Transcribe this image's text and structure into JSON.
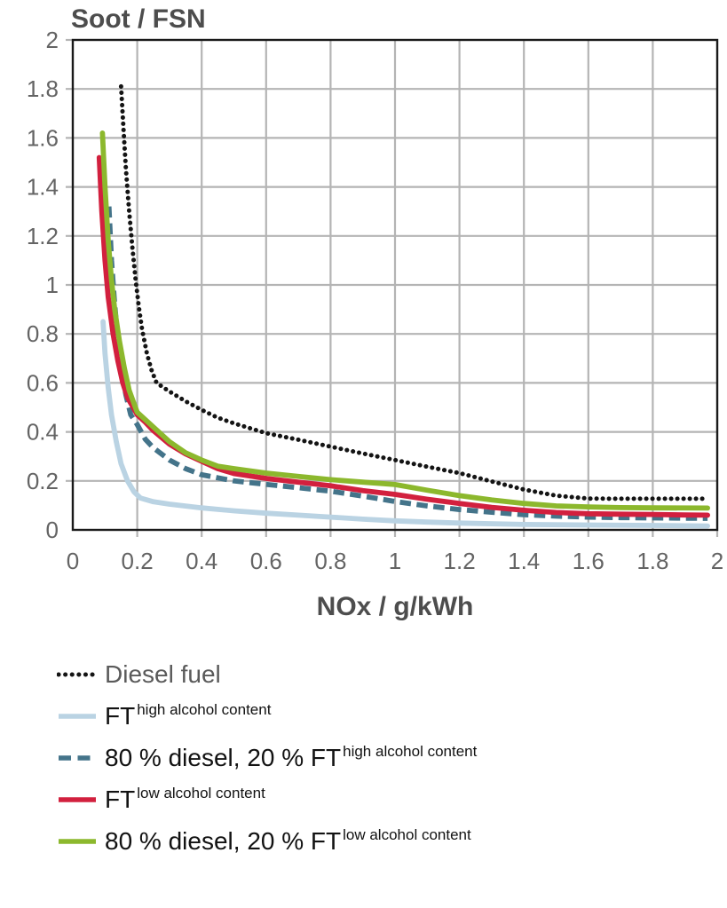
{
  "page": {
    "background": "#ffffff"
  },
  "chart_data": {
    "type": "line",
    "title": "Soot / FSN",
    "xlabel": "NOx / g/kWh",
    "ylabel": "Soot / FSN",
    "xlim": [
      0,
      2
    ],
    "ylim": [
      0,
      2
    ],
    "grid": true,
    "legend_position": "below",
    "axis_color": "#1a1a1a",
    "grid_color": "#b4b4b4",
    "tick_label_color": "#646464",
    "title_color": "#4d4d4d",
    "xticks": {
      "values": [
        0,
        0.2,
        0.4,
        0.6,
        0.8,
        1,
        1.2,
        1.4,
        1.6,
        1.8,
        2
      ],
      "labels": [
        "0",
        "0.2",
        "0.4",
        "0.6",
        "0.8",
        "1",
        "1.2",
        "1.4",
        "1.6",
        "1.8",
        "2"
      ]
    },
    "yticks": {
      "values": [
        0,
        0.2,
        0.4,
        0.6,
        0.8,
        1,
        1.2,
        1.4,
        1.6,
        1.8,
        2
      ],
      "labels": [
        "0",
        "0.2",
        "0.4",
        "0.6",
        "0.8",
        "1",
        "1.2",
        "1.4",
        "1.6",
        "1.8",
        "2"
      ]
    },
    "series": [
      {
        "name": "Diesel fuel",
        "color": "#141414",
        "style": "dotted",
        "points": [
          [
            0.15,
            1.81
          ],
          [
            0.158,
            1.62
          ],
          [
            0.165,
            1.47
          ],
          [
            0.175,
            1.3
          ],
          [
            0.185,
            1.15
          ],
          [
            0.195,
            1.02
          ],
          [
            0.205,
            0.91
          ],
          [
            0.215,
            0.82
          ],
          [
            0.23,
            0.72
          ],
          [
            0.245,
            0.65
          ],
          [
            0.26,
            0.6
          ],
          [
            0.3,
            0.565
          ],
          [
            0.35,
            0.525
          ],
          [
            0.4,
            0.49
          ],
          [
            0.45,
            0.458
          ],
          [
            0.5,
            0.435
          ],
          [
            0.6,
            0.395
          ],
          [
            0.7,
            0.368
          ],
          [
            0.8,
            0.34
          ],
          [
            0.9,
            0.312
          ],
          [
            1.0,
            0.285
          ],
          [
            1.1,
            0.258
          ],
          [
            1.2,
            0.232
          ],
          [
            1.3,
            0.198
          ],
          [
            1.4,
            0.165
          ],
          [
            1.5,
            0.14
          ],
          [
            1.6,
            0.128
          ],
          [
            1.7,
            0.127
          ],
          [
            1.8,
            0.127
          ],
          [
            1.9,
            0.127
          ],
          [
            1.97,
            0.127
          ]
        ]
      },
      {
        "name": "FT high alcohol content",
        "color": "#bad3e3",
        "style": "solid",
        "points": [
          [
            0.094,
            0.85
          ],
          [
            0.1,
            0.72
          ],
          [
            0.11,
            0.58
          ],
          [
            0.12,
            0.47
          ],
          [
            0.135,
            0.36
          ],
          [
            0.15,
            0.27
          ],
          [
            0.17,
            0.2
          ],
          [
            0.19,
            0.155
          ],
          [
            0.21,
            0.13
          ],
          [
            0.25,
            0.115
          ],
          [
            0.3,
            0.105
          ],
          [
            0.4,
            0.09
          ],
          [
            0.5,
            0.078
          ],
          [
            0.6,
            0.068
          ],
          [
            0.7,
            0.06
          ],
          [
            0.8,
            0.052
          ],
          [
            0.9,
            0.044
          ],
          [
            1.0,
            0.037
          ],
          [
            1.1,
            0.032
          ],
          [
            1.2,
            0.028
          ],
          [
            1.4,
            0.022
          ],
          [
            1.6,
            0.02
          ],
          [
            1.8,
            0.018
          ],
          [
            1.97,
            0.016
          ]
        ]
      },
      {
        "name": "80 % diesel, 20 % FT high alcohol content",
        "color": "#44748a",
        "style": "dashed",
        "points": [
          [
            0.112,
            1.32
          ],
          [
            0.12,
            1.1
          ],
          [
            0.13,
            0.92
          ],
          [
            0.14,
            0.78
          ],
          [
            0.15,
            0.66
          ],
          [
            0.165,
            0.55
          ],
          [
            0.18,
            0.47
          ],
          [
            0.2,
            0.43
          ],
          [
            0.225,
            0.37
          ],
          [
            0.25,
            0.335
          ],
          [
            0.3,
            0.285
          ],
          [
            0.35,
            0.25
          ],
          [
            0.4,
            0.225
          ],
          [
            0.5,
            0.2
          ],
          [
            0.6,
            0.186
          ],
          [
            0.7,
            0.172
          ],
          [
            0.8,
            0.158
          ],
          [
            0.9,
            0.138
          ],
          [
            1.0,
            0.116
          ],
          [
            1.1,
            0.098
          ],
          [
            1.2,
            0.083
          ],
          [
            1.3,
            0.072
          ],
          [
            1.4,
            0.062
          ],
          [
            1.5,
            0.056
          ],
          [
            1.6,
            0.052
          ],
          [
            1.7,
            0.05
          ],
          [
            1.8,
            0.049
          ],
          [
            1.97,
            0.047
          ]
        ]
      },
      {
        "name": "FT low alcohol content",
        "color": "#d2203e",
        "style": "solid",
        "points": [
          [
            0.082,
            1.52
          ],
          [
            0.09,
            1.3
          ],
          [
            0.1,
            1.1
          ],
          [
            0.11,
            0.95
          ],
          [
            0.125,
            0.8
          ],
          [
            0.14,
            0.69
          ],
          [
            0.155,
            0.6
          ],
          [
            0.17,
            0.54
          ],
          [
            0.185,
            0.505
          ],
          [
            0.2,
            0.47
          ],
          [
            0.225,
            0.44
          ],
          [
            0.25,
            0.405
          ],
          [
            0.3,
            0.35
          ],
          [
            0.35,
            0.31
          ],
          [
            0.4,
            0.28
          ],
          [
            0.45,
            0.25
          ],
          [
            0.5,
            0.23
          ],
          [
            0.6,
            0.21
          ],
          [
            0.7,
            0.195
          ],
          [
            0.8,
            0.18
          ],
          [
            0.9,
            0.16
          ],
          [
            1.0,
            0.145
          ],
          [
            1.1,
            0.125
          ],
          [
            1.2,
            0.108
          ],
          [
            1.3,
            0.092
          ],
          [
            1.4,
            0.08
          ],
          [
            1.5,
            0.071
          ],
          [
            1.6,
            0.066
          ],
          [
            1.7,
            0.064
          ],
          [
            1.8,
            0.063
          ],
          [
            1.9,
            0.061
          ],
          [
            1.97,
            0.06
          ]
        ]
      },
      {
        "name": "80 % diesel, 20 % FT low alcohol content",
        "color": "#8cb82d",
        "style": "solid",
        "points": [
          [
            0.092,
            1.62
          ],
          [
            0.1,
            1.4
          ],
          [
            0.11,
            1.18
          ],
          [
            0.12,
            1.02
          ],
          [
            0.13,
            0.9
          ],
          [
            0.145,
            0.77
          ],
          [
            0.16,
            0.66
          ],
          [
            0.175,
            0.57
          ],
          [
            0.19,
            0.515
          ],
          [
            0.2,
            0.48
          ],
          [
            0.25,
            0.42
          ],
          [
            0.3,
            0.36
          ],
          [
            0.35,
            0.315
          ],
          [
            0.4,
            0.285
          ],
          [
            0.45,
            0.26
          ],
          [
            0.5,
            0.25
          ],
          [
            0.6,
            0.232
          ],
          [
            0.7,
            0.218
          ],
          [
            0.8,
            0.205
          ],
          [
            0.9,
            0.195
          ],
          [
            1.0,
            0.185
          ],
          [
            1.1,
            0.162
          ],
          [
            1.2,
            0.14
          ],
          [
            1.3,
            0.122
          ],
          [
            1.4,
            0.108
          ],
          [
            1.5,
            0.098
          ],
          [
            1.6,
            0.094
          ],
          [
            1.7,
            0.091
          ],
          [
            1.8,
            0.09
          ],
          [
            1.97,
            0.089
          ]
        ]
      }
    ]
  },
  "legend": {
    "items": [
      {
        "main": "Diesel fuel",
        "sup": "",
        "swatch": "dotted",
        "color": "#141414",
        "label_color": "#5a5a5a"
      },
      {
        "main": "FT",
        "sup": "high alcohol content",
        "swatch": "solid",
        "color": "#bad3e3",
        "label_color": "#121212"
      },
      {
        "main": "80 % diesel, 20 % FT",
        "sup": "high alcohol content",
        "swatch": "dashed",
        "color": "#44748a",
        "label_color": "#121212"
      },
      {
        "main": "FT",
        "sup": "low alcohol content",
        "swatch": "solid",
        "color": "#d2203e",
        "label_color": "#121212"
      },
      {
        "main": "80 % diesel, 20 % FT",
        "sup": "low alcohol content",
        "swatch": "solid",
        "color": "#8cb82d",
        "label_color": "#121212"
      }
    ]
  }
}
